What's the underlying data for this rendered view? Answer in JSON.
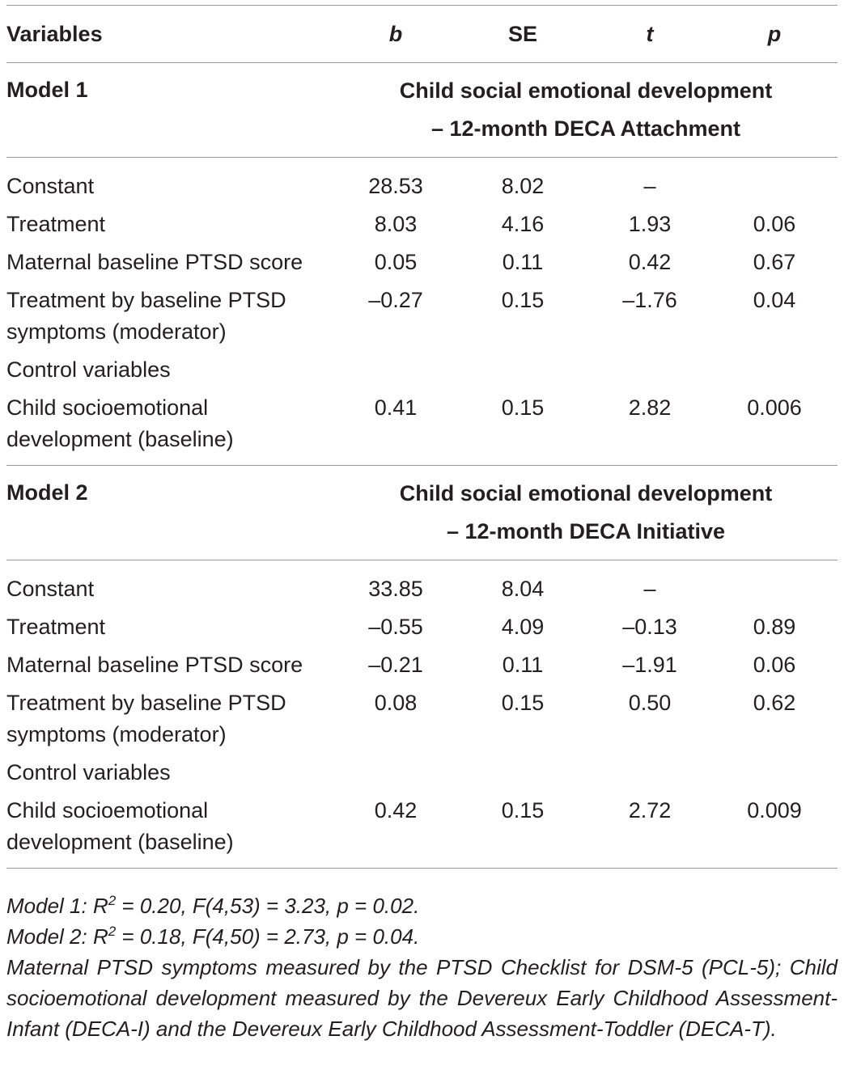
{
  "table": {
    "headers": {
      "variables": "Variables",
      "b": "b",
      "se": "SE",
      "t": "t",
      "p": "p"
    },
    "models": [
      {
        "label": "Model 1",
        "dv_line1": "Child social emotional development",
        "dv_line2": "– 12-month DECA Attachment",
        "rows": [
          {
            "name": "Constant",
            "b": "28.53",
            "se": "8.02",
            "t": "–",
            "p": ""
          },
          {
            "name": "Treatment",
            "b": "8.03",
            "se": "4.16",
            "t": "1.93",
            "p": "0.06"
          },
          {
            "name": "Maternal baseline PTSD score",
            "b": "0.05",
            "se": "0.11",
            "t": "0.42",
            "p": "0.67"
          },
          {
            "name_line1": "Treatment by baseline PTSD",
            "name_line2": "symptoms (moderator)",
            "b": "–0.27",
            "se": "0.15",
            "t": "–1.76",
            "p": "0.04"
          },
          {
            "name": "Control variables"
          },
          {
            "name_line1": "Child socioemotional",
            "name_line2": "development (baseline)",
            "b": "0.41",
            "se": "0.15",
            "t": "2.82",
            "p": "0.006"
          }
        ]
      },
      {
        "label": "Model 2",
        "dv_line1": "Child social emotional development",
        "dv_line2": "– 12-month DECA Initiative",
        "rows": [
          {
            "name": "Constant",
            "b": "33.85",
            "se": "8.04",
            "t": "–",
            "p": ""
          },
          {
            "name": "Treatment",
            "b": "–0.55",
            "se": "4.09",
            "t": "–0.13",
            "p": "0.89"
          },
          {
            "name": "Maternal baseline PTSD score",
            "b": "–0.21",
            "se": "0.11",
            "t": "–1.91",
            "p": "0.06"
          },
          {
            "name_line1": "Treatment by baseline PTSD",
            "name_line2": "symptoms (moderator)",
            "b": "0.08",
            "se": "0.15",
            "t": "0.50",
            "p": "0.62"
          },
          {
            "name": "Control variables"
          },
          {
            "name_line1": "Child socioemotional",
            "name_line2": "development (baseline)",
            "b": "0.42",
            "se": "0.15",
            "t": "2.72",
            "p": "0.009"
          }
        ]
      }
    ]
  },
  "notes": {
    "model1_prefix": "Model 1: R",
    "model1_sup": "2",
    "model1_suffix": " = 0.20, F(4,53) = 3.23, p = 0.02.",
    "model2_prefix": "Model 2: R",
    "model2_sup": "2",
    "model2_suffix": " = 0.18, F(4,50) = 2.73, p = 0.04.",
    "measures": "Maternal PTSD symptoms measured by the PTSD Checklist for DSM-5 (PCL-5); Child socioemotional development measured by the Devereux Early Childhood Assessment-Infant (DECA-I) and the Devereux Early Childhood Assessment-Toddler (DECA-T)."
  }
}
